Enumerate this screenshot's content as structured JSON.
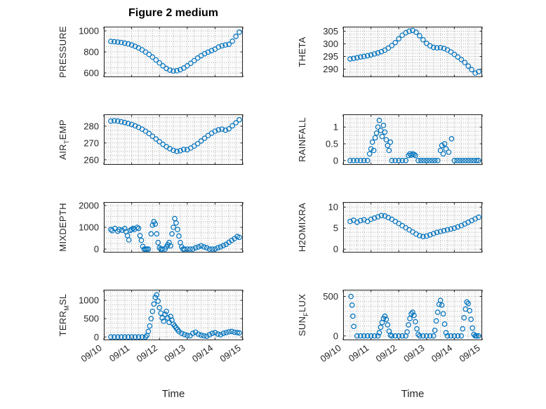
{
  "figure": {
    "title": "Figure 2 medium",
    "xlabel": "Time",
    "marker_color": "#0072BD",
    "axis_color": "#262626",
    "grid_color": "#b5b5b5",
    "xlim": [
      0,
      5
    ],
    "xminor": 0.25,
    "xticks": [
      0,
      1,
      2,
      3,
      4,
      5
    ],
    "xtick_labels": [
      "09/10",
      "09/11",
      "09/12",
      "09/13",
      "09/14",
      "09/15"
    ]
  },
  "chart_data": [
    {
      "name": "PRESSURE",
      "type": "scatter",
      "ylabel_pre": "PRESSURE",
      "ylabel_sub": "",
      "ylabel_post": "",
      "ylim": [
        560,
        1040
      ],
      "yticks": [
        600,
        800,
        1000
      ],
      "yminor": 50,
      "x": [
        0.25,
        0.375,
        0.5,
        0.625,
        0.75,
        0.875,
        1,
        1.125,
        1.25,
        1.375,
        1.5,
        1.625,
        1.75,
        1.875,
        2,
        2.125,
        2.25,
        2.375,
        2.5,
        2.625,
        2.75,
        2.875,
        3,
        3.125,
        3.25,
        3.375,
        3.5,
        3.625,
        3.75,
        3.875,
        4,
        4.125,
        4.25,
        4.375,
        4.5,
        4.625,
        4.75,
        4.875
      ],
      "y": [
        900,
        897,
        894,
        890,
        884,
        876,
        866,
        853,
        838,
        820,
        799,
        776,
        751,
        724,
        696,
        668,
        643,
        627,
        619,
        621,
        631,
        647,
        668,
        692,
        717,
        742,
        764,
        783,
        798,
        812,
        826,
        846,
        858,
        866,
        872,
        902,
        948,
        988
      ]
    },
    {
      "name": "THETA",
      "type": "scatter",
      "ylabel_pre": "THETA",
      "ylabel_sub": "",
      "ylabel_post": "",
      "ylim": [
        286.8,
        306.8
      ],
      "yticks": [
        290,
        295,
        300,
        305
      ],
      "yminor": 1.25,
      "x": [
        0.25,
        0.375,
        0.5,
        0.625,
        0.75,
        0.875,
        1,
        1.125,
        1.25,
        1.375,
        1.5,
        1.625,
        1.75,
        1.875,
        2,
        2.125,
        2.25,
        2.375,
        2.5,
        2.625,
        2.75,
        2.875,
        3,
        3.125,
        3.25,
        3.375,
        3.5,
        3.625,
        3.75,
        3.875,
        4,
        4.125,
        4.25,
        4.375,
        4.5,
        4.625,
        4.75,
        4.875
      ],
      "y": [
        294,
        294.2,
        294.5,
        294.8,
        295,
        295.3,
        295.6,
        296,
        296.4,
        296.9,
        297.5,
        298.3,
        299.3,
        300.5,
        302,
        303.4,
        304.4,
        305,
        305.3,
        304.6,
        303.2,
        301.6,
        300.2,
        299.2,
        298.6,
        298.4,
        298.5,
        298.2,
        297.6,
        296.8,
        295.8,
        294.8,
        293.8,
        292.6,
        291.2,
        289.8,
        288.4,
        289
      ]
    },
    {
      "name": "AIR_TEMP",
      "type": "scatter",
      "ylabel_pre": "AIR",
      "ylabel_sub": "T",
      "ylabel_post": "EMP",
      "ylim": [
        257,
        287
      ],
      "yticks": [
        260,
        270,
        280
      ],
      "yminor": 2.5,
      "x": [
        0.25,
        0.375,
        0.5,
        0.625,
        0.75,
        0.875,
        1,
        1.125,
        1.25,
        1.375,
        1.5,
        1.625,
        1.75,
        1.875,
        2,
        2.125,
        2.25,
        2.375,
        2.5,
        2.625,
        2.75,
        2.875,
        3,
        3.125,
        3.25,
        3.375,
        3.5,
        3.625,
        3.75,
        3.875,
        4,
        4.125,
        4.25,
        4.375,
        4.5,
        4.625,
        4.75,
        4.875
      ],
      "y": [
        283,
        283.2,
        283,
        282.6,
        282.2,
        281.6,
        281,
        280.2,
        279.3,
        278.2,
        277,
        275.6,
        274,
        272.4,
        270.8,
        269.2,
        267.8,
        266.6,
        265.6,
        265,
        265.4,
        266.2,
        266,
        267,
        268.2,
        269.6,
        271.2,
        272.8,
        274.4,
        275.8,
        277,
        277.8,
        278.2,
        277.6,
        278.4,
        280.2,
        282,
        283.8
      ]
    },
    {
      "name": "RAINFALL",
      "type": "scatter",
      "ylabel_pre": "RAINFALL",
      "ylabel_sub": "",
      "ylabel_post": "",
      "ylim": [
        -0.13,
        1.38
      ],
      "yticks": [
        0,
        0.5,
        1
      ],
      "yminor": 0.125,
      "x": [
        0.25,
        0.375,
        0.5,
        0.625,
        0.75,
        0.875,
        0.95,
        1,
        1.05,
        1.1,
        1.15,
        1.2,
        1.25,
        1.3,
        1.35,
        1.4,
        1.45,
        1.5,
        1.55,
        1.6,
        1.65,
        1.7,
        1.75,
        1.875,
        2,
        2.125,
        2.25,
        2.35,
        2.4,
        2.45,
        2.5,
        2.55,
        2.6,
        2.7,
        2.8,
        2.9,
        3,
        3.1,
        3.2,
        3.3,
        3.4,
        3.5,
        3.55,
        3.6,
        3.65,
        3.7,
        3.8,
        3.9,
        4,
        4.1,
        4.2,
        4.3,
        4.4,
        4.5,
        4.6,
        4.7,
        4.8,
        4.875
      ],
      "y": [
        0,
        0,
        0,
        0,
        0,
        0,
        0.2,
        0.35,
        0.55,
        0.3,
        0.68,
        0.82,
        1,
        1.2,
        0.9,
        0.72,
        1.05,
        0.85,
        0.62,
        0.45,
        0.3,
        0.55,
        0,
        0,
        0,
        0,
        0,
        0.15,
        0.2,
        0.16,
        0.2,
        0.18,
        0.15,
        0,
        0,
        0,
        0,
        0,
        0,
        0,
        0,
        0.3,
        0.45,
        0.2,
        0.5,
        0.35,
        0.25,
        0.65,
        0,
        0,
        0,
        0,
        0,
        0,
        0,
        0,
        0,
        0
      ]
    },
    {
      "name": "MIXDEPTH",
      "type": "scatter",
      "ylabel_pre": "MIXDEPTH",
      "ylabel_sub": "",
      "ylabel_post": "",
      "ylim": [
        -160,
        2160
      ],
      "yticks": [
        0,
        1000,
        2000
      ],
      "yminor": 250,
      "x": [
        0.25,
        0.3,
        0.4,
        0.5,
        0.55,
        0.65,
        0.75,
        0.8,
        0.85,
        0.9,
        0.95,
        1,
        1.05,
        1.1,
        1.2,
        1.25,
        1.3,
        1.35,
        1.4,
        1.45,
        1.5,
        1.55,
        1.6,
        1.7,
        1.75,
        1.8,
        1.85,
        1.9,
        1.95,
        2,
        2.05,
        2.1,
        2.2,
        2.25,
        2.3,
        2.35,
        2.4,
        2.45,
        2.5,
        2.55,
        2.6,
        2.65,
        2.7,
        2.75,
        2.8,
        2.85,
        2.9,
        3,
        3.1,
        3.2,
        3.3,
        3.4,
        3.5,
        3.6,
        3.7,
        3.8,
        3.9,
        4,
        4.1,
        4.2,
        4.3,
        4.4,
        4.5,
        4.6,
        4.7,
        4.8,
        4.875
      ],
      "y": [
        900,
        850,
        950,
        820,
        900,
        870,
        940,
        800,
        620,
        420,
        860,
        900,
        950,
        900,
        1000,
        950,
        620,
        400,
        120,
        0,
        0,
        0,
        0,
        700,
        1100,
        1260,
        1150,
        700,
        300,
        60,
        0,
        0,
        0,
        100,
        200,
        300,
        150,
        700,
        1000,
        1400,
        1200,
        900,
        600,
        300,
        100,
        0,
        0,
        0,
        0,
        0,
        60,
        100,
        150,
        100,
        60,
        0,
        0,
        0,
        60,
        100,
        160,
        220,
        310,
        400,
        480,
        580,
        540
      ]
    },
    {
      "name": "H2OMIXRA",
      "type": "scatter",
      "ylabel_pre": "H2OMIXRA",
      "ylabel_sub": "",
      "ylabel_post": "",
      "ylim": [
        -0.8,
        11.2
      ],
      "yticks": [
        0,
        5,
        10
      ],
      "yminor": 1,
      "x": [
        0.25,
        0.375,
        0.5,
        0.625,
        0.75,
        0.875,
        1,
        1.125,
        1.25,
        1.375,
        1.5,
        1.625,
        1.75,
        1.875,
        2,
        2.125,
        2.25,
        2.375,
        2.5,
        2.625,
        2.75,
        2.875,
        3,
        3.125,
        3.25,
        3.375,
        3.5,
        3.625,
        3.75,
        3.875,
        4,
        4.125,
        4.25,
        4.375,
        4.5,
        4.625,
        4.75,
        4.875
      ],
      "y": [
        6.6,
        6.9,
        6.4,
        6.8,
        7,
        6.6,
        7.1,
        7.4,
        7.7,
        8,
        7.9,
        7.5,
        7.1,
        6.6,
        6.1,
        5.6,
        5.1,
        4.6,
        4.1,
        3.6,
        3.2,
        3,
        3.1,
        3.4,
        3.7,
        4,
        4.2,
        4.4,
        4.6,
        4.8,
        5,
        5.3,
        5.6,
        6,
        6.4,
        6.8,
        7.2,
        7.6
      ]
    },
    {
      "name": "TERR_MSL",
      "type": "scatter",
      "ylabel_pre": "TERR",
      "ylabel_sub": "M",
      "ylabel_post": "SL",
      "ylim": [
        -90,
        1290
      ],
      "yticks": [
        0,
        500,
        1000
      ],
      "yminor": 125,
      "x": [
        0.25,
        0.375,
        0.5,
        0.625,
        0.75,
        0.875,
        1,
        1.125,
        1.25,
        1.375,
        1.5,
        1.55,
        1.6,
        1.65,
        1.7,
        1.75,
        1.8,
        1.85,
        1.9,
        1.95,
        2,
        2.05,
        2.1,
        2.15,
        2.2,
        2.25,
        2.3,
        2.35,
        2.4,
        2.45,
        2.5,
        2.55,
        2.6,
        2.65,
        2.7,
        2.8,
        2.9,
        3,
        3.1,
        3.2,
        3.3,
        3.4,
        3.5,
        3.6,
        3.7,
        3.8,
        3.9,
        4,
        4.1,
        4.2,
        4.3,
        4.4,
        4.5,
        4.6,
        4.7,
        4.8,
        4.875
      ],
      "y": [
        0,
        0,
        0,
        0,
        0,
        0,
        0,
        0,
        0,
        0,
        0,
        40,
        150,
        300,
        500,
        700,
        900,
        1080,
        1150,
        980,
        800,
        650,
        520,
        430,
        620,
        700,
        520,
        400,
        560,
        460,
        350,
        300,
        250,
        200,
        150,
        100,
        70,
        40,
        30,
        100,
        130,
        80,
        50,
        30,
        20,
        60,
        100,
        120,
        80,
        60,
        100,
        120,
        140,
        150,
        130,
        120,
        110
      ]
    },
    {
      "name": "SUN_FLUX",
      "type": "scatter",
      "ylabel_pre": "SUN",
      "ylabel_sub": "F",
      "ylabel_post": "LUX",
      "ylim": [
        -55,
        585
      ],
      "yticks": [
        0,
        500
      ],
      "yminor": 62.5,
      "x": [
        0.28,
        0.32,
        0.35,
        0.38,
        0.5,
        0.625,
        0.75,
        0.875,
        1,
        1.125,
        1.25,
        1.3,
        1.35,
        1.4,
        1.45,
        1.5,
        1.55,
        1.6,
        1.65,
        1.7,
        1.75,
        1.875,
        2,
        2.125,
        2.25,
        2.3,
        2.35,
        2.4,
        2.45,
        2.5,
        2.55,
        2.6,
        2.65,
        2.7,
        2.75,
        2.875,
        3,
        3.125,
        3.25,
        3.3,
        3.35,
        3.4,
        3.45,
        3.5,
        3.55,
        3.6,
        3.65,
        3.7,
        3.75,
        3.875,
        4,
        4.125,
        4.25,
        4.3,
        4.35,
        4.4,
        4.45,
        4.5,
        4.55,
        4.6,
        4.65,
        4.7,
        4.75,
        4.8,
        4.875
      ],
      "y": [
        500,
        390,
        250,
        120,
        0,
        0,
        0,
        0,
        0,
        0,
        0,
        40,
        110,
        170,
        220,
        250,
        210,
        140,
        60,
        10,
        0,
        0,
        0,
        0,
        0,
        50,
        140,
        220,
        280,
        300,
        260,
        180,
        90,
        20,
        0,
        0,
        0,
        0,
        0,
        70,
        190,
        300,
        400,
        450,
        390,
        280,
        150,
        40,
        0,
        0,
        0,
        0,
        0,
        90,
        230,
        340,
        430,
        410,
        320,
        210,
        100,
        20,
        0,
        0,
        0
      ]
    }
  ]
}
